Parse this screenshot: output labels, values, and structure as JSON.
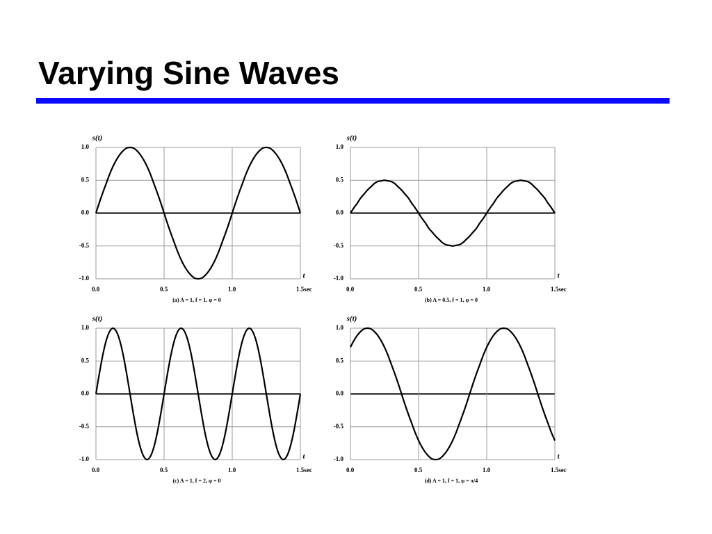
{
  "title": "Varying Sine Waves",
  "chart_data": [
    {
      "type": "line",
      "caption": "(a) A = 1, f = 1, φ = 0",
      "y_label": "s(t)",
      "x_label": "t",
      "color": "#000000",
      "grid": true,
      "xlim": [
        0,
        1.5
      ],
      "ylim": [
        -1,
        1
      ],
      "xticks": [
        {
          "value": 0,
          "label": "0.0"
        },
        {
          "value": 0.5,
          "label": "0.5"
        },
        {
          "value": 1,
          "label": "1.0"
        },
        {
          "value": 1.5,
          "label": "1.5sec"
        }
      ],
      "yticks": [
        {
          "value": 1,
          "label": "1.0"
        },
        {
          "value": 0.5,
          "label": "0.5"
        },
        {
          "value": 0,
          "label": "0.0"
        },
        {
          "value": -0.5,
          "label": "-0.5"
        },
        {
          "value": -1,
          "label": "-1.0"
        }
      ],
      "x": [
        0,
        0.025,
        0.05,
        0.075,
        0.1,
        0.125,
        0.15,
        0.175,
        0.2,
        0.225,
        0.25,
        0.275,
        0.3,
        0.325,
        0.35,
        0.375,
        0.4,
        0.425,
        0.45,
        0.475,
        0.5,
        0.525,
        0.55,
        0.575,
        0.6,
        0.625,
        0.65,
        0.675,
        0.7,
        0.725,
        0.75,
        0.775,
        0.8,
        0.825,
        0.85,
        0.875,
        0.9,
        0.925,
        0.95,
        0.975,
        1,
        1.025,
        1.05,
        1.075,
        1.1,
        1.125,
        1.15,
        1.175,
        1.2,
        1.225,
        1.25,
        1.275,
        1.3,
        1.325,
        1.35,
        1.375,
        1.4,
        1.425,
        1.45,
        1.475,
        1.5
      ],
      "values": [
        0,
        0.16,
        0.31,
        0.45,
        0.59,
        0.71,
        0.81,
        0.89,
        0.95,
        0.99,
        1,
        0.99,
        0.95,
        0.89,
        0.81,
        0.71,
        0.59,
        0.45,
        0.31,
        0.16,
        0,
        -0.16,
        -0.31,
        -0.45,
        -0.59,
        -0.71,
        -0.81,
        -0.89,
        -0.95,
        -0.99,
        -1,
        -0.99,
        -0.95,
        -0.89,
        -0.81,
        -0.71,
        -0.59,
        -0.45,
        -0.31,
        -0.16,
        0,
        0.16,
        0.31,
        0.45,
        0.59,
        0.71,
        0.81,
        0.89,
        0.95,
        0.99,
        1,
        0.99,
        0.95,
        0.89,
        0.81,
        0.71,
        0.59,
        0.45,
        0.31,
        0.16,
        0
      ]
    },
    {
      "type": "line",
      "caption": "(b) A = 0.5, f = 1, φ = 0",
      "y_label": "s(t)",
      "x_label": "t",
      "color": "#000000",
      "grid": true,
      "xlim": [
        0,
        1.5
      ],
      "ylim": [
        -1,
        1
      ],
      "xticks": [
        {
          "value": 0,
          "label": "0.0"
        },
        {
          "value": 0.5,
          "label": "0.5"
        },
        {
          "value": 1,
          "label": "1.0"
        },
        {
          "value": 1.5,
          "label": "1.5sec"
        }
      ],
      "yticks": [
        {
          "value": 1,
          "label": "1.0"
        },
        {
          "value": 0.5,
          "label": "0.5"
        },
        {
          "value": 0,
          "label": "0.0"
        },
        {
          "value": -0.5,
          "label": "-0.5"
        },
        {
          "value": -1,
          "label": "-1.0"
        }
      ],
      "x": [
        0,
        0.025,
        0.05,
        0.075,
        0.1,
        0.125,
        0.15,
        0.175,
        0.2,
        0.225,
        0.25,
        0.275,
        0.3,
        0.325,
        0.35,
        0.375,
        0.4,
        0.425,
        0.45,
        0.475,
        0.5,
        0.525,
        0.55,
        0.575,
        0.6,
        0.625,
        0.65,
        0.675,
        0.7,
        0.725,
        0.75,
        0.775,
        0.8,
        0.825,
        0.85,
        0.875,
        0.9,
        0.925,
        0.95,
        0.975,
        1,
        1.025,
        1.05,
        1.075,
        1.1,
        1.125,
        1.15,
        1.175,
        1.2,
        1.225,
        1.25,
        1.275,
        1.3,
        1.325,
        1.35,
        1.375,
        1.4,
        1.425,
        1.45,
        1.475,
        1.5
      ],
      "values": [
        0,
        0.08,
        0.15,
        0.23,
        0.29,
        0.35,
        0.4,
        0.45,
        0.48,
        0.49,
        0.5,
        0.49,
        0.48,
        0.45,
        0.4,
        0.35,
        0.29,
        0.23,
        0.15,
        0.08,
        0,
        -0.08,
        -0.15,
        -0.23,
        -0.29,
        -0.35,
        -0.4,
        -0.45,
        -0.48,
        -0.49,
        -0.5,
        -0.49,
        -0.48,
        -0.45,
        -0.4,
        -0.35,
        -0.29,
        -0.23,
        -0.15,
        -0.08,
        0,
        0.08,
        0.15,
        0.23,
        0.29,
        0.35,
        0.4,
        0.45,
        0.48,
        0.49,
        0.5,
        0.49,
        0.48,
        0.45,
        0.4,
        0.35,
        0.29,
        0.23,
        0.15,
        0.08,
        0
      ]
    },
    {
      "type": "line",
      "caption": "(c) A = 1, f = 2, φ = 0",
      "y_label": "s(t)",
      "x_label": "t",
      "color": "#000000",
      "grid": true,
      "xlim": [
        0,
        1.5
      ],
      "ylim": [
        -1,
        1
      ],
      "xticks": [
        {
          "value": 0,
          "label": "0.0"
        },
        {
          "value": 0.5,
          "label": "0.5"
        },
        {
          "value": 1,
          "label": "1.0"
        },
        {
          "value": 1.5,
          "label": "1.5sec"
        }
      ],
      "yticks": [
        {
          "value": 1,
          "label": "1.0"
        },
        {
          "value": 0.5,
          "label": "0.5"
        },
        {
          "value": 0,
          "label": "0.0"
        },
        {
          "value": -0.5,
          "label": "-0.5"
        },
        {
          "value": -1,
          "label": "-1.0"
        }
      ],
      "x": [
        0,
        0.025,
        0.05,
        0.075,
        0.1,
        0.125,
        0.15,
        0.175,
        0.2,
        0.225,
        0.25,
        0.275,
        0.3,
        0.325,
        0.35,
        0.375,
        0.4,
        0.425,
        0.45,
        0.475,
        0.5,
        0.525,
        0.55,
        0.575,
        0.6,
        0.625,
        0.65,
        0.675,
        0.7,
        0.725,
        0.75,
        0.775,
        0.8,
        0.825,
        0.85,
        0.875,
        0.9,
        0.925,
        0.95,
        0.975,
        1,
        1.025,
        1.05,
        1.075,
        1.1,
        1.125,
        1.15,
        1.175,
        1.2,
        1.225,
        1.25,
        1.275,
        1.3,
        1.325,
        1.35,
        1.375,
        1.4,
        1.425,
        1.45,
        1.475,
        1.5
      ],
      "values": [
        0,
        0.31,
        0.59,
        0.81,
        0.95,
        1,
        0.95,
        0.81,
        0.59,
        0.31,
        0,
        -0.31,
        -0.59,
        -0.81,
        -0.95,
        -1,
        -0.95,
        -0.81,
        -0.59,
        -0.31,
        0,
        0.31,
        0.59,
        0.81,
        0.95,
        1,
        0.95,
        0.81,
        0.59,
        0.31,
        0,
        -0.31,
        -0.59,
        -0.81,
        -0.95,
        -1,
        -0.95,
        -0.81,
        -0.59,
        -0.31,
        0,
        0.31,
        0.59,
        0.81,
        0.95,
        1,
        0.95,
        0.81,
        0.59,
        0.31,
        0,
        -0.31,
        -0.59,
        -0.81,
        -0.95,
        -1,
        -0.95,
        -0.81,
        -0.59,
        -0.31,
        0
      ]
    },
    {
      "type": "line",
      "caption": "(d) A = 1, f = 1, φ = π/4",
      "y_label": "s(t)",
      "x_label": "t",
      "color": "#000000",
      "grid": true,
      "xlim": [
        0,
        1.5
      ],
      "ylim": [
        -1,
        1
      ],
      "xticks": [
        {
          "value": 0,
          "label": "0.0"
        },
        {
          "value": 0.5,
          "label": "0.5"
        },
        {
          "value": 1,
          "label": "1.0"
        },
        {
          "value": 1.5,
          "label": "1.5sec"
        }
      ],
      "yticks": [
        {
          "value": 1,
          "label": "1.0"
        },
        {
          "value": 0.5,
          "label": "0.5"
        },
        {
          "value": 0,
          "label": "0.0"
        },
        {
          "value": -0.5,
          "label": "-0.5"
        },
        {
          "value": -1,
          "label": "-1.0"
        }
      ],
      "x": [
        0,
        0.025,
        0.05,
        0.075,
        0.1,
        0.125,
        0.15,
        0.175,
        0.2,
        0.225,
        0.25,
        0.275,
        0.3,
        0.325,
        0.35,
        0.375,
        0.4,
        0.425,
        0.45,
        0.475,
        0.5,
        0.525,
        0.55,
        0.575,
        0.6,
        0.625,
        0.65,
        0.675,
        0.7,
        0.725,
        0.75,
        0.775,
        0.8,
        0.825,
        0.85,
        0.875,
        0.9,
        0.925,
        0.95,
        0.975,
        1,
        1.025,
        1.05,
        1.075,
        1.1,
        1.125,
        1.15,
        1.175,
        1.2,
        1.225,
        1.25,
        1.275,
        1.3,
        1.325,
        1.35,
        1.375,
        1.4,
        1.425,
        1.45,
        1.475,
        1.5
      ],
      "values": [
        0.71,
        0.81,
        0.89,
        0.95,
        0.99,
        1,
        0.99,
        0.95,
        0.89,
        0.81,
        0.71,
        0.59,
        0.45,
        0.31,
        0.16,
        0,
        -0.16,
        -0.31,
        -0.45,
        -0.59,
        -0.71,
        -0.81,
        -0.89,
        -0.95,
        -0.99,
        -1,
        -0.99,
        -0.95,
        -0.89,
        -0.81,
        -0.71,
        -0.59,
        -0.45,
        -0.31,
        -0.16,
        0,
        0.16,
        0.31,
        0.45,
        0.59,
        0.71,
        0.81,
        0.89,
        0.95,
        0.99,
        1,
        0.99,
        0.95,
        0.89,
        0.81,
        0.71,
        0.59,
        0.45,
        0.31,
        0.16,
        0,
        -0.16,
        -0.31,
        -0.45,
        -0.59,
        -0.71
      ]
    }
  ]
}
